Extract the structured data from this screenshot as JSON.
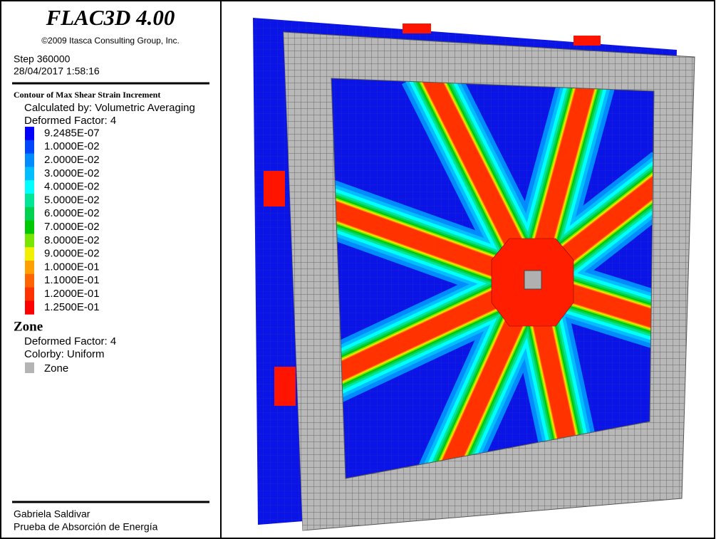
{
  "header": {
    "title": "FLAC3D 4.00",
    "copyright": "©2009 Itasca Consulting Group, Inc.",
    "step": "Step 360000",
    "date": "28/04/2017 1:58:16"
  },
  "contour": {
    "title": "Contour of Max Shear Strain Increment",
    "calculated_by": "Calculated by: Volumetric Averaging",
    "deformed_factor": "Deformed Factor: 4",
    "legend": [
      {
        "label": "9.2485E-07",
        "color": "#0000ff"
      },
      {
        "label": "1.0000E-02",
        "color": "#0046ff"
      },
      {
        "label": "2.0000E-02",
        "color": "#008cff"
      },
      {
        "label": "3.0000E-02",
        "color": "#00beff"
      },
      {
        "label": "4.0000E-02",
        "color": "#00ffff"
      },
      {
        "label": "5.0000E-02",
        "color": "#00e696"
      },
      {
        "label": "6.0000E-02",
        "color": "#00d250"
      },
      {
        "label": "7.0000E-02",
        "color": "#00c800"
      },
      {
        "label": "8.0000E-02",
        "color": "#78e600"
      },
      {
        "label": "9.0000E-02",
        "color": "#f0f000"
      },
      {
        "label": "1.0000E-01",
        "color": "#ffa000"
      },
      {
        "label": "1.1000E-01",
        "color": "#ff6400"
      },
      {
        "label": "1.2000E-01",
        "color": "#ff3200"
      },
      {
        "label": "1.2500E-01",
        "color": "#ff0000"
      }
    ]
  },
  "zone": {
    "title": "Zone",
    "deformed_factor": "Deformed Factor: 4",
    "colorby": "Colorby: Uniform",
    "legend": {
      "label": "Zone",
      "color": "#b4b4b4"
    }
  },
  "footer": {
    "author": "Gabriela Saldivar",
    "description": "Prueba de Absorción de Energía"
  }
}
